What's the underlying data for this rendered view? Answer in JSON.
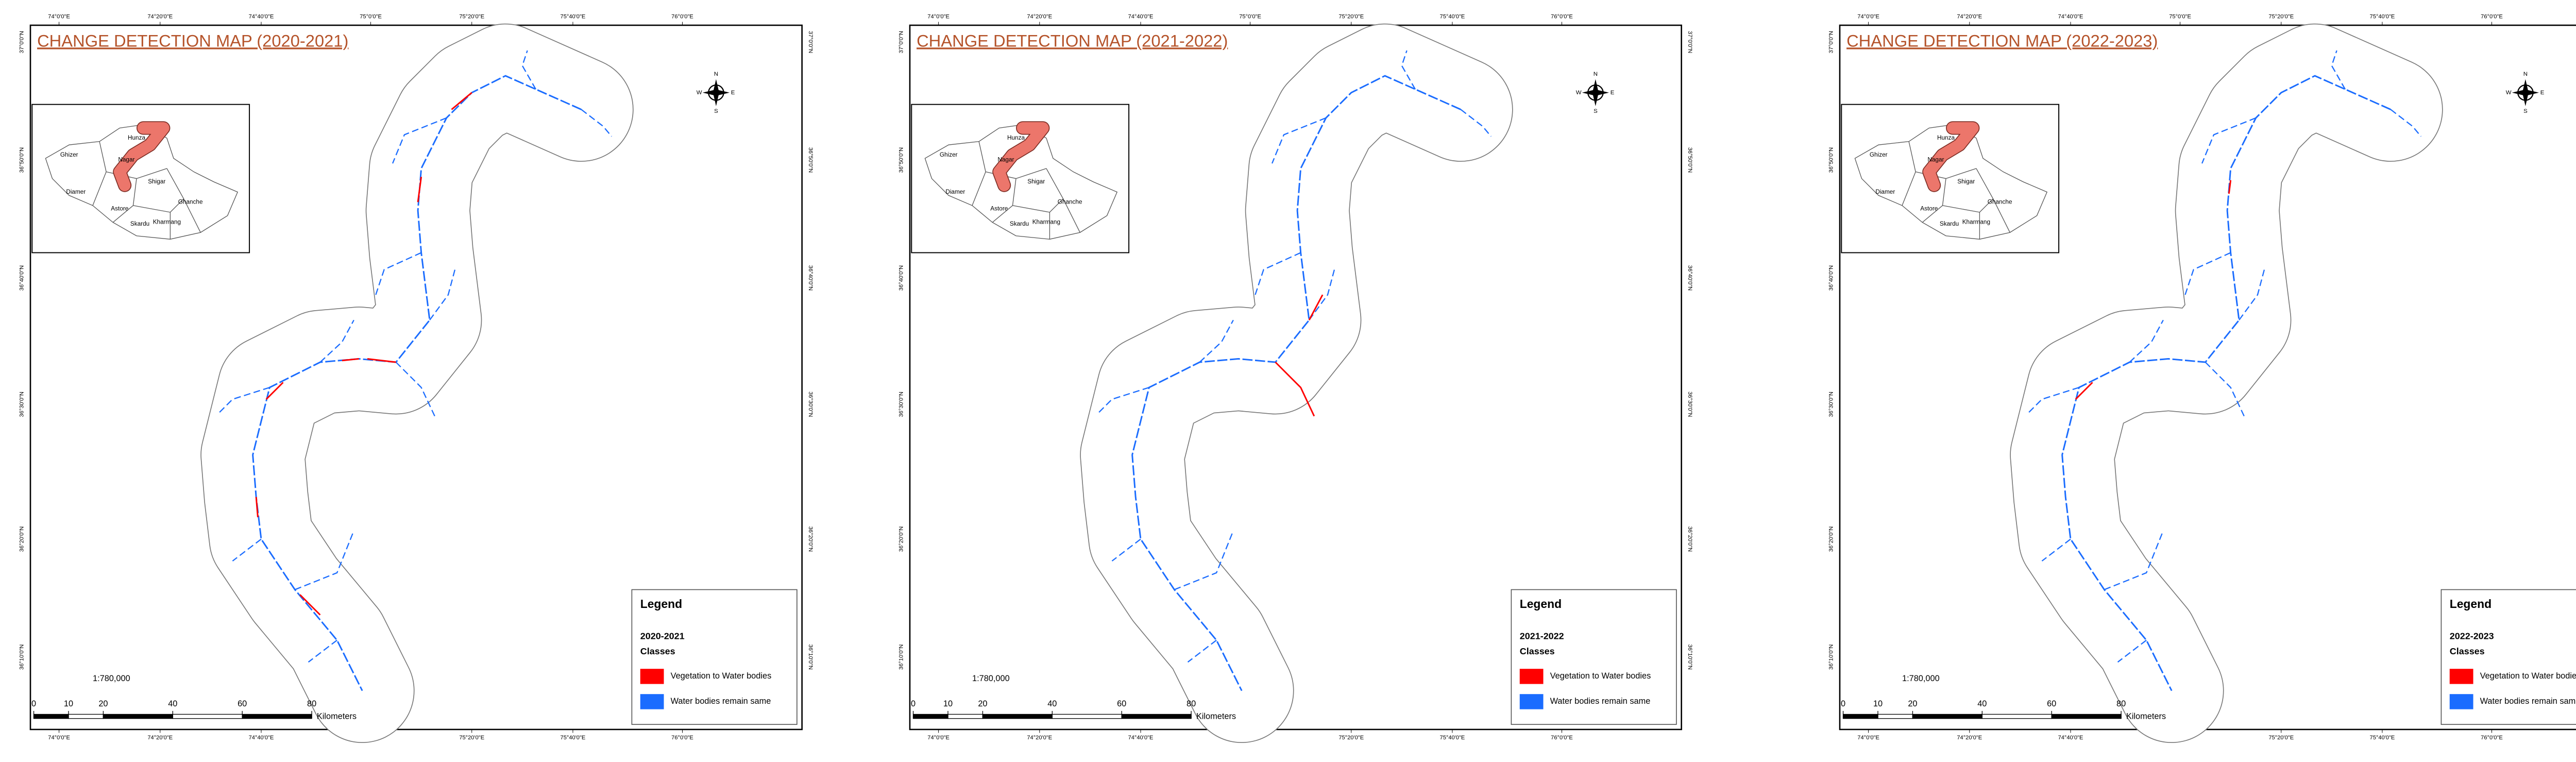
{
  "panels": [
    {
      "title": "CHANGE DETECTION MAP (2020-2021)",
      "period": "2020-2021"
    },
    {
      "title": "CHANGE DETECTION MAP (2021-2022)",
      "period": "2021-2022"
    },
    {
      "title": "CHANGE DETECTION MAP (2022-2023)",
      "period": "2022-2023"
    }
  ],
  "legend": {
    "title": "Legend",
    "subtitle": "Classes",
    "items": [
      {
        "label": "Vegetation to Water bodies",
        "color": "#ff0000"
      },
      {
        "label": "Water bodies remain same",
        "color": "#1a6cff"
      }
    ]
  },
  "scale": {
    "ratio": "1:780,000",
    "ticks": [
      0,
      10,
      20,
      40,
      60,
      80
    ],
    "unit": "Kilometers"
  },
  "inset": {
    "labels": [
      "Ghizer",
      "Hunza",
      "Nagar",
      "Shigar",
      "Diamer",
      "Astore",
      "Ghanche",
      "Skardu",
      "Kharmang"
    ]
  },
  "compass": {
    "n": "N",
    "s": "S",
    "e": "E",
    "w": "W"
  },
  "graticule": {
    "longitudes": [
      "74°0'0\"E",
      "74°20'0\"E",
      "74°40'0\"E",
      "75°0'0\"E",
      "75°20'0\"E",
      "75°40'0\"E",
      "76°0'0\"E"
    ],
    "latitudes": [
      "37°0'0\"N",
      "36°50'0\"N",
      "36°40'0\"N",
      "36°30'0\"N",
      "36°20'0\"N",
      "36°10'0\"N"
    ]
  }
}
